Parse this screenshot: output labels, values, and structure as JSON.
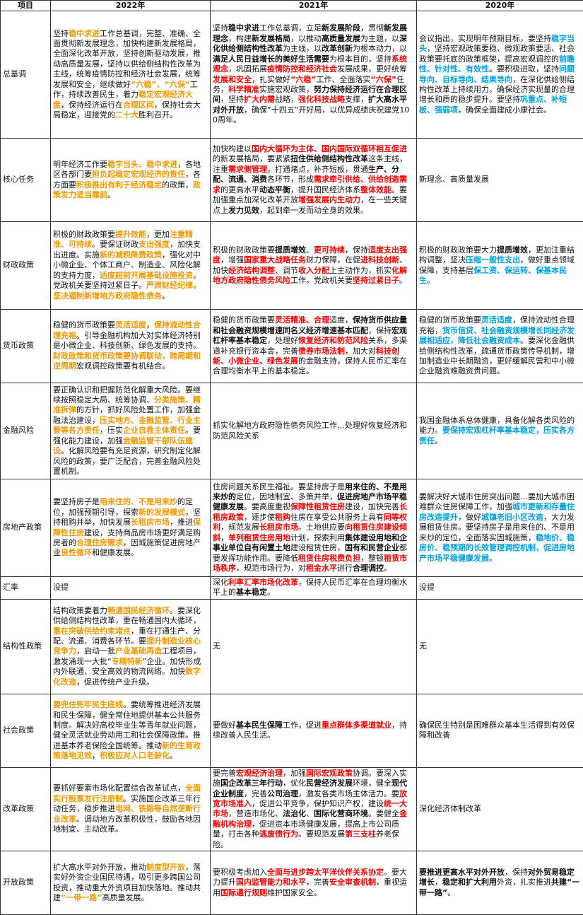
{
  "headers": [
    "项目",
    "2022年",
    "2021年",
    "2020年"
  ],
  "rows": [
    {
      "category": "总基调",
      "y2022": [
        {
          "t": "坚持"
        },
        {
          "t": "稳中求进",
          "s": "o"
        },
        {
          "t": "工作总基调，完整、准确、全面贯彻新发展理念，加快构建新发展格局，全面深化改革开放，坚持创新驱动发展，推动高质量发展，坚持以供给侧结构性改革为主线，统筹疫情防控和经济社会发展，统筹发展和安全，继续做好"
        },
        {
          "t": "“六稳”、“六保”",
          "s": "o"
        },
        {
          "t": "工作，持续改善民生，着力"
        },
        {
          "t": "稳定宏观经济大盘",
          "s": "o"
        },
        {
          "t": "，保持经济运行在"
        },
        {
          "t": "合理区间",
          "s": "o"
        },
        {
          "t": "，保持社会大局稳定，迎接党的"
        },
        {
          "t": "二十大",
          "s": "o"
        },
        {
          "t": "胜利召开。"
        }
      ],
      "y2021": [
        {
          "t": "坚持"
        },
        {
          "t": "稳中求进",
          "s": "bk"
        },
        {
          "t": "工作总基调，立足"
        },
        {
          "t": "新发展阶段",
          "s": "bk"
        },
        {
          "t": "，贯彻"
        },
        {
          "t": "新发展理念",
          "s": "bk"
        },
        {
          "t": "，构建"
        },
        {
          "t": "新发展格局",
          "s": "bk"
        },
        {
          "t": "，以推动"
        },
        {
          "t": "高质量发展",
          "s": "bk"
        },
        {
          "t": "为主题，以"
        },
        {
          "t": "深化供给侧结构性改革",
          "s": "bk"
        },
        {
          "t": "为主线，以"
        },
        {
          "t": "改革创新",
          "s": "bk"
        },
        {
          "t": "为根本动力，以"
        },
        {
          "t": "满足人民日益增长的美好生活需要",
          "s": "bk"
        },
        {
          "t": "为根本目的，坚持"
        },
        {
          "t": "系统观念",
          "s": "r"
        },
        {
          "t": "，巩固拓展"
        },
        {
          "t": "疫情防控和经济社会",
          "s": "r"
        },
        {
          "t": "发展成果，更好统筹"
        },
        {
          "t": "发展和安全",
          "s": "r"
        },
        {
          "t": "，扎实做好"
        },
        {
          "t": "“六稳”",
          "s": "r"
        },
        {
          "t": "工作、全面落实"
        },
        {
          "t": "“六保”",
          "s": "r"
        },
        {
          "t": "任务，"
        },
        {
          "t": "科学精准",
          "s": "r"
        },
        {
          "t": "实施宏观政策，"
        },
        {
          "t": "努力保持经济运行在合理区间",
          "s": "bk"
        },
        {
          "t": "，坚持"
        },
        {
          "t": "扩大内需",
          "s": "r"
        },
        {
          "t": "战略，"
        },
        {
          "t": "强化科技战略",
          "s": "r"
        },
        {
          "t": "支撑，"
        },
        {
          "t": "扩大高水平对外开放",
          "s": "bk"
        },
        {
          "t": "，确保“十四五”开好局，以优异成绩庆祝建党100周年。"
        }
      ],
      "y2020": [
        {
          "t": "会议指出，实现明年预期目标，要坚持"
        },
        {
          "t": "稳字当头",
          "s": "b"
        },
        {
          "t": "，坚持宏观政策要稳、微观政策要活、社会政策要托底的政策框架，提高宏观调控的"
        },
        {
          "t": "前瞻性、针对性、有效性",
          "s": "b"
        },
        {
          "t": "。要积极进取，坚持"
        },
        {
          "t": "问题导向、目标导向、结果导向",
          "s": "b"
        },
        {
          "t": "，在深化供给侧结构性改革上持续用力，确保经济实现量的合理增长和质的稳步提升。要坚持"
        },
        {
          "t": "巩重点、补短板、强弱项",
          "s": "b"
        },
        {
          "t": "，确保全面建成小康社会。"
        }
      ]
    },
    {
      "category": "核心任务",
      "y2022": [
        {
          "t": "明年经济工作要"
        },
        {
          "t": "稳字当头、稳中求进",
          "s": "o"
        },
        {
          "t": "，各地区各部门要"
        },
        {
          "t": "担负起稳定宏观经济的责任",
          "s": "o"
        },
        {
          "t": "，各方面要"
        },
        {
          "t": "积极推出有利于经济稳定",
          "s": "o"
        },
        {
          "t": "的政策，"
        },
        {
          "t": "政策发力适当靠前",
          "s": "o"
        },
        {
          "t": "。"
        }
      ],
      "y2021": [
        {
          "t": "加快构建以"
        },
        {
          "t": "国内大循环为主体、国内国际双循环相互促进",
          "s": "r"
        },
        {
          "t": "的新发展格局，要紧紧"
        },
        {
          "t": "扭住供给侧结构性改革",
          "s": "bk"
        },
        {
          "t": "这条主线，注重"
        },
        {
          "t": "需求侧管理",
          "s": "r"
        },
        {
          "t": "，打通堵点，补齐短板，贯通"
        },
        {
          "t": "生产、分配、流通、消费",
          "s": "bk"
        },
        {
          "t": "各环节，形成"
        },
        {
          "t": "需求牵引供给、供给创造需求",
          "s": "r"
        },
        {
          "t": "的更高水平"
        },
        {
          "t": "动态平衡",
          "s": "bk"
        },
        {
          "t": "，提升国民经济体系"
        },
        {
          "t": "整体效能",
          "s": "r"
        },
        {
          "t": "。要加强重点加深化改革开放"
        },
        {
          "t": "增强发展内生动力",
          "s": "r"
        },
        {
          "t": "，在一些关键点上"
        },
        {
          "t": "发力见效",
          "s": "bk"
        },
        {
          "t": "，起到牵一发而动全身的效果。"
        }
      ],
      "y2020": [
        {
          "t": "新理念、高质量发展"
        }
      ]
    },
    {
      "category": "财政政策",
      "y2022": [
        {
          "t": "积极的财政政策要"
        },
        {
          "t": "提升效能",
          "s": "o"
        },
        {
          "t": "，更加"
        },
        {
          "t": "注重精准、可持续",
          "s": "o"
        },
        {
          "t": "。要保证财政"
        },
        {
          "t": "支出强度",
          "s": "o"
        },
        {
          "t": "，加快支出进度。实施"
        },
        {
          "t": "新的减税降费政策",
          "s": "o"
        },
        {
          "t": "，强化对中小微企业、个体工商户、制造业、风险化解的支持力度，"
        },
        {
          "t": "适度超前开展基础设施投资",
          "s": "o"
        },
        {
          "t": "。党政机关要坚持过紧日子。"
        },
        {
          "t": "严肃财经纪律。坚决遏制新增地方政府隐性债务",
          "s": "o"
        },
        {
          "t": "。"
        }
      ],
      "y2021": [
        {
          "t": "积极的财政政策要"
        },
        {
          "t": "提质增效",
          "s": "bk"
        },
        {
          "t": "、"
        },
        {
          "t": "更可持续",
          "s": "r"
        },
        {
          "t": "，保持"
        },
        {
          "t": "适度支出强度",
          "s": "r"
        },
        {
          "t": "，增强"
        },
        {
          "t": "国家重大战略任务",
          "s": "r"
        },
        {
          "t": "财力保障，在促"
        },
        {
          "t": "进科技创新",
          "s": "r"
        },
        {
          "t": "、加快"
        },
        {
          "t": "经济结构调整",
          "s": "r"
        },
        {
          "t": "、调节"
        },
        {
          "t": "收入分配",
          "s": "r"
        },
        {
          "t": "上主动作为，抓实"
        },
        {
          "t": "化解地方政府隐性债务风险",
          "s": "r"
        },
        {
          "t": "工作，党政机关要"
        },
        {
          "t": "坚持过紧日子",
          "s": "r"
        },
        {
          "t": "。"
        }
      ],
      "y2020": [
        {
          "t": "积极的财政政策要大力"
        },
        {
          "t": "提质增效",
          "s": "bk"
        },
        {
          "t": "，更加注重结构调整，坚决"
        },
        {
          "t": "压缩一般性支出",
          "s": "b"
        },
        {
          "t": "，做好重点领域保障，支持基层"
        },
        {
          "t": "保工资、保运转、保基本民生",
          "s": "b"
        },
        {
          "t": "。"
        }
      ]
    },
    {
      "category": "货币政策",
      "y2022": [
        {
          "t": "稳健的货币政策要"
        },
        {
          "t": "灵活适度",
          "s": "o"
        },
        {
          "t": "，"
        },
        {
          "t": "保持流动性合理充裕",
          "s": "o"
        },
        {
          "t": "。引导金融机构加大对实体经济特别是小微企业、科技创新、绿色发展的支持。"
        },
        {
          "t": "财政政策和货币政策要协调联动，跨周期和逆周期",
          "s": "o"
        },
        {
          "t": "宏观调控政策要有机结合。"
        }
      ],
      "y2021": [
        {
          "t": "稳健的货币政策要"
        },
        {
          "t": "灵活精准、合理",
          "s": "r"
        },
        {
          "t": "适度，"
        },
        {
          "t": "保持货币供应量和社会融资规模增速同名义经济增速基本匹配",
          "s": "bk"
        },
        {
          "t": "，保持"
        },
        {
          "t": "宏观杠杆率基本稳定",
          "s": "bk"
        },
        {
          "t": "，处理好"
        },
        {
          "t": "恢复经济和防范风险",
          "s": "r"
        },
        {
          "t": "关系，多渠道补充银行资本金，完善"
        },
        {
          "t": "债券市场法制",
          "s": "r"
        },
        {
          "t": "，加大对"
        },
        {
          "t": "科技创新、小微企业、绿色发展",
          "s": "r"
        },
        {
          "t": "的金融支持，保持人民币汇率在合理均衡水平上的基本稳定。"
        }
      ],
      "y2020": [
        {
          "t": "稳健的货币政策要"
        },
        {
          "t": "灵活适度",
          "s": "b"
        },
        {
          "t": "，保持流动性合理充裕，"
        },
        {
          "t": "货币信贷、社会融资规模增长同经济发展相适应，降低社会融资成本",
          "s": "b"
        },
        {
          "t": "。要深化金融供给侧结构性改革，疏通货币政策传导机制，增加制造业中长期融资，更好缓解民营和中小微企业融资难融资贵问题。"
        }
      ]
    },
    {
      "category": "金融风险",
      "y2022": [
        {
          "t": "要正确认识和把握防范化解重大风险。要继续按照稳定大局、统筹协调、"
        },
        {
          "t": "分类施策、精准拆弹",
          "s": "o"
        },
        {
          "t": "的方针，抓好风险处置工作，加强金融法治建设，"
        },
        {
          "t": "压实地方、金融监管、行业主管等各方责任",
          "s": "o"
        },
        {
          "t": "，压实"
        },
        {
          "t": "企业自救主体责任",
          "s": "o"
        },
        {
          "t": "。要强化能力建设，加强"
        },
        {
          "t": "金融监管干部队伍建设",
          "s": "o"
        },
        {
          "t": "。化解风险要有充足资源，研究制定化解风险的政策，要广泛配合，完善金融风险处置机制。"
        }
      ],
      "y2021": [
        {
          "t": "抓实化解地方政府隐性债务风险工作…处理好恢复经济和防范风险关系"
        }
      ],
      "y2020": [
        {
          "t": "我国金融体系总体健康，具备化解各类风险的能力。"
        },
        {
          "t": "要保持宏观杠杆率基本稳定，压实各方责任",
          "s": "b"
        },
        {
          "t": "。"
        }
      ]
    },
    {
      "category": "房地产政策",
      "y2022": [
        {
          "t": "要坚持房子是"
        },
        {
          "t": "用来住的、不是用来炒",
          "s": "o"
        },
        {
          "t": "的定位，加强预期引导，探索"
        },
        {
          "t": "新的发展模式",
          "s": "o"
        },
        {
          "t": "，坚持租购并举，加快发展"
        },
        {
          "t": "长租房市场",
          "s": "o"
        },
        {
          "t": "，推进"
        },
        {
          "t": "保障性住房",
          "s": "o"
        },
        {
          "t": "建设，支持商品房市场更好满足购房者的"
        },
        {
          "t": "合理住房需求",
          "s": "o"
        },
        {
          "t": "，因城施策促进房地产业"
        },
        {
          "t": "良性循环",
          "s": "o"
        },
        {
          "t": "和健康发展。"
        }
      ],
      "y2021": [
        {
          "t": "住房问题关系民生福祉。要坚持房子是"
        },
        {
          "t": "用来住的、不是用来炒的",
          "s": "bk"
        },
        {
          "t": "定位，因地制宜、多策并举，"
        },
        {
          "t": "促进房地产市场平稳健康发展",
          "s": "bk"
        },
        {
          "t": "。要高度重视"
        },
        {
          "t": "保障性租赁住房",
          "s": "r"
        },
        {
          "t": "建设，加快完善"
        },
        {
          "t": "长租房政策",
          "s": "r"
        },
        {
          "t": "，逐步使"
        },
        {
          "t": "租购",
          "s": "r"
        },
        {
          "t": "住房在享受公共服务上具有"
        },
        {
          "t": "同等权利",
          "s": "r"
        },
        {
          "t": "，规范发展"
        },
        {
          "t": "长租房市场",
          "s": "r"
        },
        {
          "t": "。土地供应要"
        },
        {
          "t": "向租赁住房建设倾斜",
          "s": "r"
        },
        {
          "t": "，"
        },
        {
          "t": "单列租赁住房用地",
          "s": "r"
        },
        {
          "t": "计划，探索利用"
        },
        {
          "t": "集体建设用地和企事业单位自有闲置土地",
          "s": "bk"
        },
        {
          "t": "建设租赁住房，"
        },
        {
          "t": "国有和民营企业",
          "s": "bk"
        },
        {
          "t": "都要发挥功能作用。要降低"
        },
        {
          "t": "租赁住房税费负担",
          "s": "r"
        },
        {
          "t": "，整顿"
        },
        {
          "t": "租赁市场秩序",
          "s": "r"
        },
        {
          "t": "，规范市场行为，对"
        },
        {
          "t": "租金水平",
          "s": "r"
        },
        {
          "t": "进行"
        },
        {
          "t": "合理调控",
          "s": "bk"
        },
        {
          "t": "。"
        }
      ],
      "y2020": [
        {
          "t": "要解决好大城市住房突出问题…要加大城市困难群众住房保障工作，加强"
        },
        {
          "t": "城市更新和存量住房改造提升",
          "s": "b"
        },
        {
          "t": "，做好"
        },
        {
          "t": "城镇老旧小区改造",
          "s": "b"
        },
        {
          "t": "，大力发展租赁住房。要坚持房子是用来住的、不是用来炒的定位，全面落实因城施策，"
        },
        {
          "t": "稳地价、稳房价、稳预期的长效管理调控机制，促进房地产市场平稳健康发展",
          "s": "b"
        },
        {
          "t": "。"
        }
      ]
    },
    {
      "category": "汇率",
      "y2022": [
        {
          "t": "没提"
        }
      ],
      "y2021": [
        {
          "t": "深化"
        },
        {
          "t": "利率汇率市场化改革",
          "s": "r"
        },
        {
          "t": "，保持人民币汇率在合理均衡水平上的"
        },
        {
          "t": "基本稳定",
          "s": "bk"
        },
        {
          "t": "。"
        }
      ],
      "y2020": [
        {
          "t": "没提"
        }
      ]
    },
    {
      "category": "结构性政策",
      "y2022": [
        {
          "t": "结构政策要着力"
        },
        {
          "t": "畅通国民经济循环",
          "s": "o"
        },
        {
          "t": "。要深化供给侧结构性改革，重在畅通国内大循环，"
        },
        {
          "t": "重在突破供给约束堵点",
          "s": "o"
        },
        {
          "t": "，重在打通生产、分配、流通、消费各环节。要"
        },
        {
          "t": "提升制造业核心竞争力",
          "s": "o"
        },
        {
          "t": "，启动一批"
        },
        {
          "t": "产业基础再造",
          "s": "o"
        },
        {
          "t": "工程项目，激发涌现一大批“"
        },
        {
          "t": "专精特新",
          "s": "o"
        },
        {
          "t": "”企业。加快形成内外联通、安全高效的物流网络。加快"
        },
        {
          "t": "数字化改造",
          "s": "o"
        },
        {
          "t": "，促进传统产业升级。"
        }
      ],
      "y2021": [
        {
          "t": "无"
        }
      ],
      "y2020": [
        {
          "t": "无"
        }
      ]
    },
    {
      "category": "社会政策",
      "y2022": [
        {
          "t": "要兜住兜牢民生底线",
          "s": "o"
        },
        {
          "t": "。要统筹推进经济发展和民生保障，健全常住地提供基本公共服务制度。解决好高校毕业生等青年就业问题，健全灵活就业劳动用工和社会保障政策。推进基本养老保险全国统筹。推动"
        },
        {
          "t": "新的生育政策落地见效",
          "s": "o"
        },
        {
          "t": "，"
        },
        {
          "t": "积极应对人口老龄化",
          "s": "o"
        },
        {
          "t": "。"
        }
      ],
      "y2021": [
        {
          "t": "要做好"
        },
        {
          "t": "基本民生保障",
          "s": "bk"
        },
        {
          "t": "工作，促进"
        },
        {
          "t": "重点群体多渠道就业",
          "s": "r"
        },
        {
          "t": "，持续改善人民生活。"
        }
      ],
      "y2020": [
        {
          "t": "确保民生特别是困难群众基本生活得到有效保障和改善"
        }
      ]
    },
    {
      "category": "改革政策",
      "y2022": [
        {
          "t": "要抓好要素市场化配置综合改革试点，"
        },
        {
          "t": "全面实行股票发行注册制",
          "s": "o"
        },
        {
          "t": "。实施国企改革三年行动任务，稳步推进"
        },
        {
          "t": "电网、铁路等自然垄断行业改革",
          "s": "o"
        },
        {
          "t": "。调动地方改革积极性，鼓励各地因地制宜、主动改革。"
        }
      ],
      "y2021": [
        {
          "t": "要完善"
        },
        {
          "t": "宏观经济治理",
          "s": "r"
        },
        {
          "t": "，加强"
        },
        {
          "t": "国际宏观政策",
          "s": "r"
        },
        {
          "t": "协调。要深入实施"
        },
        {
          "t": "国企改革三年行动",
          "s": "bk"
        },
        {
          "t": "，优化"
        },
        {
          "t": "民营经济发展",
          "s": "bk"
        },
        {
          "t": "环境，健全"
        },
        {
          "t": "现代企业制度",
          "s": "bk"
        },
        {
          "t": "，完善"
        },
        {
          "t": "公司治理",
          "s": "bk"
        },
        {
          "t": "，激发各类市场主体活力。要"
        },
        {
          "t": "放宽市场准入",
          "s": "r"
        },
        {
          "t": "，促进公平竞争，保护知识产权，建设"
        },
        {
          "t": "统一大市场",
          "s": "r"
        },
        {
          "t": "，营造市场化、"
        },
        {
          "t": "法治化",
          "s": "bk"
        },
        {
          "t": "、"
        },
        {
          "t": "国际化营商环境",
          "s": "bk"
        },
        {
          "t": "。要健全"
        },
        {
          "t": "金融机构治理",
          "s": "r"
        },
        {
          "t": "，促进资本市场健康发展，提高上市公司质量，打击各种"
        },
        {
          "t": "逃废债行为",
          "s": "r"
        },
        {
          "t": "。要规范发展"
        },
        {
          "t": "第三支柱",
          "s": "r"
        },
        {
          "t": "养老保险。"
        }
      ],
      "y2020": [
        {
          "t": "深化经济体制改革"
        }
      ]
    },
    {
      "category": "开放政策",
      "y2022": [
        {
          "t": "扩大高水平对外开放，推动"
        },
        {
          "t": "制度型开放",
          "s": "o"
        },
        {
          "t": "，落实好外资企业国民待遇，吸引更多跨国公司投资，推动重大外资项目加快落地。推动共建"
        },
        {
          "t": "“一带一路”",
          "s": "o"
        },
        {
          "t": "高质量发展。"
        }
      ],
      "y2021": [
        {
          "t": "要积极考虑加入"
        },
        {
          "t": "全面与进步跨太平洋伙伴关系协定",
          "s": "r"
        },
        {
          "t": "。要大力提升"
        },
        {
          "t": "国内监管能力和水平",
          "s": "r"
        },
        {
          "t": "，完善"
        },
        {
          "t": "安全审查机制",
          "s": "r"
        },
        {
          "t": "，重视运用"
        },
        {
          "t": "国际通行规则",
          "s": "r"
        },
        {
          "t": "维护国家安全。"
        }
      ],
      "y2020": [
        {
          "t": "要推进",
          "s": "bk"
        },
        {
          "t": "更高水平对外开放",
          "s": "bk"
        },
        {
          "t": "，保持"
        },
        {
          "t": "对外贸易稳定增长",
          "s": "bk"
        },
        {
          "t": "，"
        },
        {
          "t": "稳定和扩大利用",
          "s": "bk"
        },
        {
          "t": "外资，扎实推进"
        },
        {
          "t": "共建“一带一路”",
          "s": "bk"
        },
        {
          "t": "。"
        }
      ]
    }
  ]
}
